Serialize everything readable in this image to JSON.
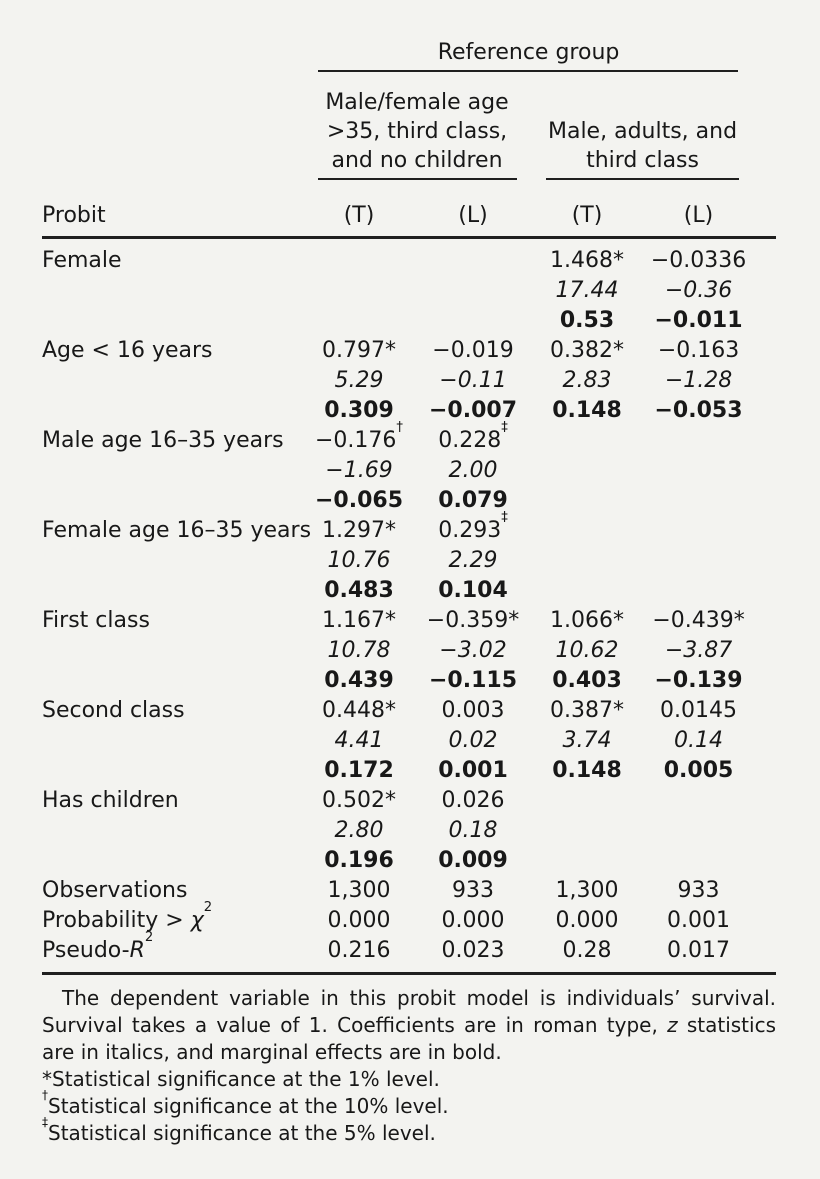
{
  "header": {
    "row_header": "Probit",
    "reference_group_label": "Reference group",
    "groups": [
      {
        "label_lines": [
          "Male/female age",
          ">35, third class,",
          "and no children"
        ],
        "columns": [
          "(T)",
          "(L)"
        ]
      },
      {
        "label_lines": [
          "Male, adults, and",
          "third class"
        ],
        "columns": [
          "(T)",
          "(L)"
        ]
      }
    ]
  },
  "table": {
    "line_styles": [
      "coefficient",
      "z_statistic",
      "marginal_effect"
    ],
    "rows": [
      {
        "label": "Female",
        "cells": [
          [
            "",
            "",
            "1.468*",
            "−0.0336"
          ],
          [
            "",
            "",
            "17.44",
            "−0.36"
          ],
          [
            "",
            "",
            "0.53",
            "−0.011"
          ]
        ]
      },
      {
        "label": "Age < 16 years",
        "cells": [
          [
            "0.797*",
            "−0.019",
            "0.382*",
            "−0.163"
          ],
          [
            "5.29",
            "−0.11",
            "2.83",
            "−1.28"
          ],
          [
            "0.309",
            "−0.007",
            "0.148",
            "−0.053"
          ]
        ]
      },
      {
        "label": "Male age 16–35 years",
        "cells": [
          [
            "−0.176†",
            "0.228‡",
            "",
            ""
          ],
          [
            "−1.69",
            "2.00",
            "",
            ""
          ],
          [
            "−0.065",
            "0.079",
            "",
            ""
          ]
        ]
      },
      {
        "label": "Female age 16–35 years",
        "cells": [
          [
            "1.297*",
            "0.293‡",
            "",
            ""
          ],
          [
            "10.76",
            "2.29",
            "",
            ""
          ],
          [
            "0.483",
            "0.104",
            "",
            ""
          ]
        ]
      },
      {
        "label": "First class",
        "cells": [
          [
            "1.167*",
            "−0.359*",
            "1.066*",
            "−0.439*"
          ],
          [
            "10.78",
            "−3.02",
            "10.62",
            "−3.87"
          ],
          [
            "0.439",
            "−0.115",
            "0.403",
            "−0.139"
          ]
        ]
      },
      {
        "label": "Second class",
        "cells": [
          [
            "0.448*",
            "0.003",
            "0.387*",
            "0.0145"
          ],
          [
            "4.41",
            "0.02",
            "3.74",
            "0.14"
          ],
          [
            "0.172",
            "0.001",
            "0.148",
            "0.005"
          ]
        ]
      },
      {
        "label": "Has children",
        "cells": [
          [
            "0.502*",
            "0.026",
            "",
            ""
          ],
          [
            "2.80",
            "0.18",
            "",
            ""
          ],
          [
            "0.196",
            "0.009",
            "",
            ""
          ]
        ]
      }
    ],
    "stat_rows": [
      {
        "label_pre": "Observations",
        "label_italic": "",
        "label_sup": "",
        "values": [
          "1,300",
          "933",
          "1,300",
          "933"
        ]
      },
      {
        "label_pre": "Probability > ",
        "label_italic": "χ",
        "label_sup": "2",
        "values": [
          "0.000",
          "0.000",
          "0.000",
          "0.001"
        ]
      },
      {
        "label_pre": "Pseudo-",
        "label_italic": "R",
        "label_sup": "2",
        "values": [
          "0.216",
          "0.023",
          "0.28",
          "0.017"
        ]
      }
    ]
  },
  "notes": [
    {
      "segments": [
        {
          "t": "The dependent variable in this probit model is individuals’ survival. Survival takes a value of 1. Coefficients are in roman type, "
        },
        {
          "t": "z",
          "s": "i"
        },
        {
          "t": " statistics are in italics, and marginal effects are in bold."
        }
      ]
    },
    {
      "segments": [
        {
          "t": "*Statistical significance at the 1% level."
        }
      ]
    },
    {
      "segments": [
        {
          "t": "†",
          "s": "sup"
        },
        {
          "t": "Statistical significance at the 10% level."
        }
      ]
    },
    {
      "segments": [
        {
          "t": "‡",
          "s": "sup"
        },
        {
          "t": "Statistical significance at the 5% level."
        }
      ]
    }
  ],
  "colors": {
    "background": "#f3f3f0",
    "text": "#181818",
    "rule": "#1f1f1f"
  }
}
